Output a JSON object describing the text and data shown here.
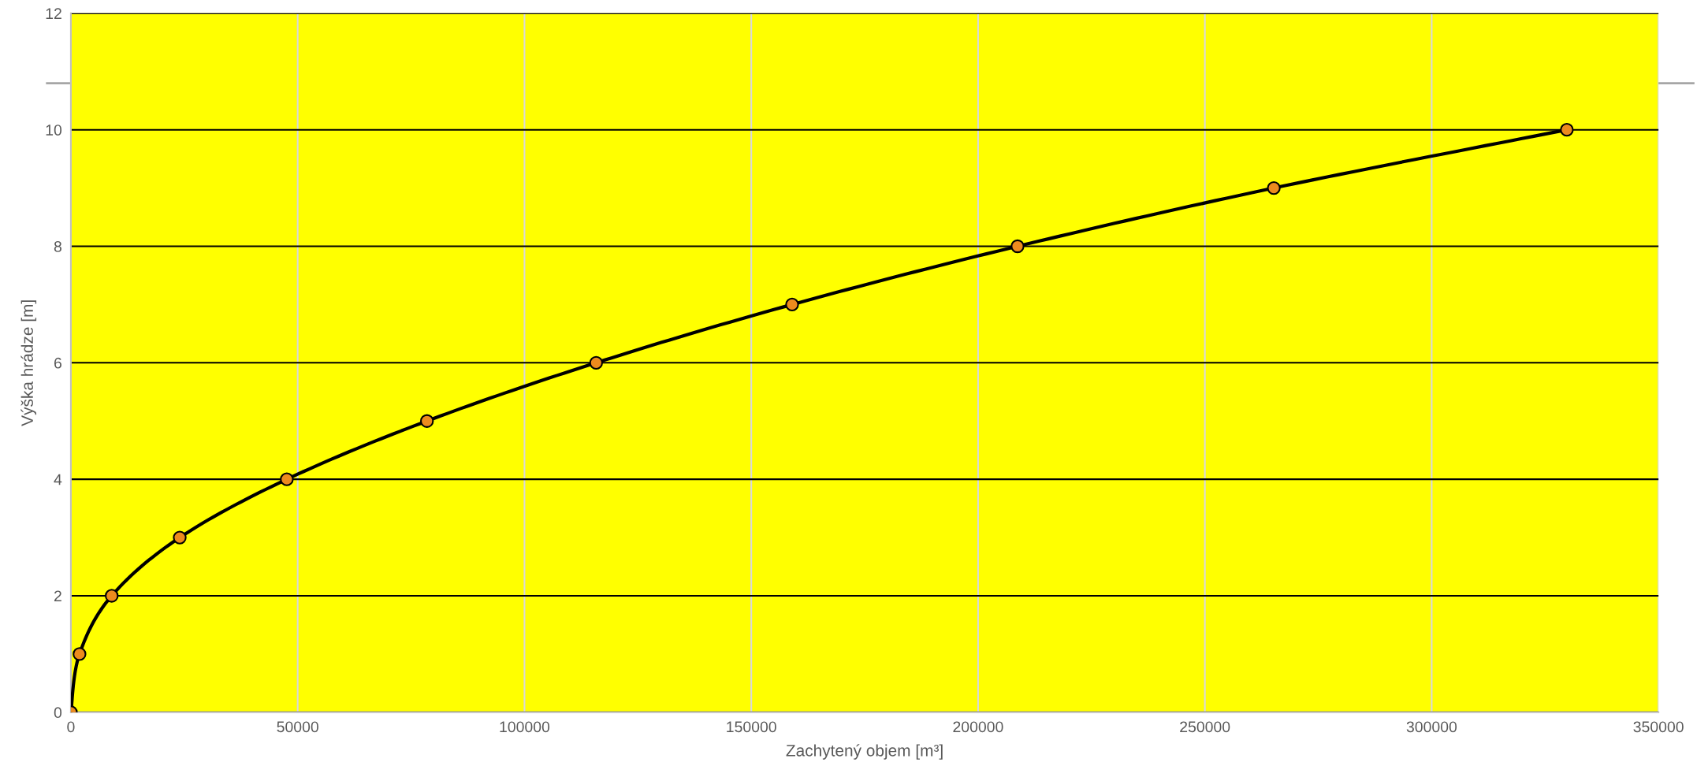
{
  "chart_data": {
    "type": "line",
    "xlabel": "Zachytený objem [m³]",
    "ylabel": "Výška hrádze [m]",
    "x": [
      0,
      1900,
      9000,
      24000,
      47600,
      78500,
      115800,
      159000,
      208700,
      265200,
      329800
    ],
    "series": [
      {
        "color": "#000000",
        "values": [
          0,
          1,
          2,
          3,
          4,
          5,
          6,
          7,
          8,
          9,
          10
        ]
      }
    ],
    "xlim": [
      0,
      350000
    ],
    "xticks": [
      0,
      50000,
      100000,
      150000,
      200000,
      250000,
      300000,
      350000
    ],
    "ylim": [
      0,
      12
    ],
    "yticks": [
      0,
      2,
      4,
      6,
      8,
      10,
      12
    ],
    "grid": true,
    "marker": "circle",
    "line_style": "solid",
    "ref_lines": [
      {
        "axis": "y",
        "value": 10.8,
        "color": "#a6a6a6"
      }
    ]
  }
}
